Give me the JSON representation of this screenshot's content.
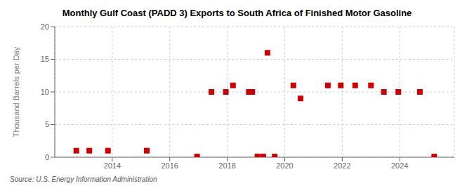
{
  "chart_data": {
    "type": "scatter",
    "title": "Monthly Gulf Coast (PADD 3) Exports to South Africa of Finished Motor Gasoline",
    "ylabel": "Thousand Barrels per Day",
    "annotations": [
      "Source: U.S. Energy Information Administration"
    ],
    "x": [
      2012.75,
      2013.2,
      2013.85,
      2015.2,
      2016.95,
      2017.45,
      2017.95,
      2018.2,
      2018.75,
      2018.87,
      2019.05,
      2019.25,
      2019.4,
      2019.65,
      2020.3,
      2020.55,
      2021.5,
      2021.95,
      2022.45,
      2023.0,
      2023.45,
      2023.95,
      2024.7,
      2025.2
    ],
    "values": [
      1.0,
      1.0,
      1.0,
      1.0,
      0.1,
      10.0,
      10.0,
      11.0,
      10.0,
      10.0,
      0.1,
      0.1,
      16.0,
      0.1,
      11.0,
      9.0,
      11.0,
      11.0,
      11.0,
      11.0,
      10.0,
      10.0,
      10.0,
      0.1
    ],
    "color": "#cc0000",
    "marker": "square",
    "xlim": [
      2012.0,
      2025.9
    ],
    "xticks": [
      2014,
      2016,
      2018,
      2020,
      2022,
      2024
    ],
    "ylim": [
      0,
      20
    ],
    "yticks": [
      0,
      5,
      10,
      15,
      20
    ],
    "grid": true
  }
}
